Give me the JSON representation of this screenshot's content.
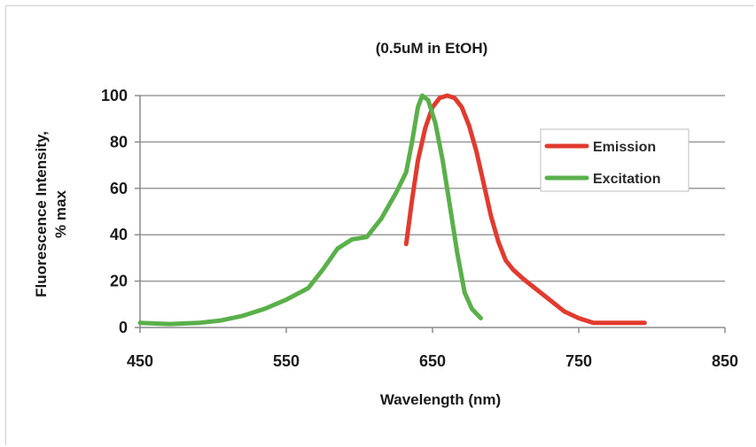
{
  "chart_data": {
    "type": "line",
    "title": "(0.5uM in EtOH)",
    "xlabel": "Wavelength (nm)",
    "ylabel": [
      "Fluorescence Intensity,",
      "% max"
    ],
    "xlim": [
      450,
      850
    ],
    "ylim": [
      0,
      100
    ],
    "xticks": [
      450,
      550,
      650,
      750,
      850
    ],
    "yticks": [
      0,
      20,
      40,
      60,
      80,
      100
    ],
    "grid": "horizontal",
    "legend_position": "right",
    "series": [
      {
        "name": "Emission",
        "color": "#e23a2e",
        "points": [
          [
            632,
            36
          ],
          [
            636,
            55
          ],
          [
            640,
            72
          ],
          [
            645,
            86
          ],
          [
            650,
            95
          ],
          [
            655,
            99
          ],
          [
            660,
            100
          ],
          [
            665,
            99
          ],
          [
            670,
            95
          ],
          [
            675,
            87
          ],
          [
            680,
            76
          ],
          [
            685,
            62
          ],
          [
            690,
            48
          ],
          [
            695,
            37
          ],
          [
            700,
            29
          ],
          [
            705,
            25
          ],
          [
            712,
            21
          ],
          [
            720,
            17
          ],
          [
            730,
            12
          ],
          [
            740,
            7
          ],
          [
            750,
            4
          ],
          [
            760,
            2
          ],
          [
            770,
            2
          ],
          [
            780,
            2
          ],
          [
            795,
            2
          ]
        ]
      },
      {
        "name": "Excitation",
        "color": "#5ab04a",
        "points": [
          [
            450,
            2
          ],
          [
            470,
            1.5
          ],
          [
            490,
            2
          ],
          [
            505,
            3
          ],
          [
            520,
            5
          ],
          [
            535,
            8
          ],
          [
            550,
            12
          ],
          [
            565,
            17
          ],
          [
            575,
            25
          ],
          [
            585,
            34
          ],
          [
            595,
            38
          ],
          [
            605,
            39
          ],
          [
            615,
            47
          ],
          [
            625,
            58
          ],
          [
            632,
            67
          ],
          [
            636,
            80
          ],
          [
            640,
            95
          ],
          [
            643,
            100
          ],
          [
            647,
            98
          ],
          [
            652,
            88
          ],
          [
            657,
            72
          ],
          [
            662,
            52
          ],
          [
            667,
            32
          ],
          [
            672,
            15
          ],
          [
            677,
            8
          ],
          [
            683,
            4
          ]
        ]
      }
    ]
  }
}
